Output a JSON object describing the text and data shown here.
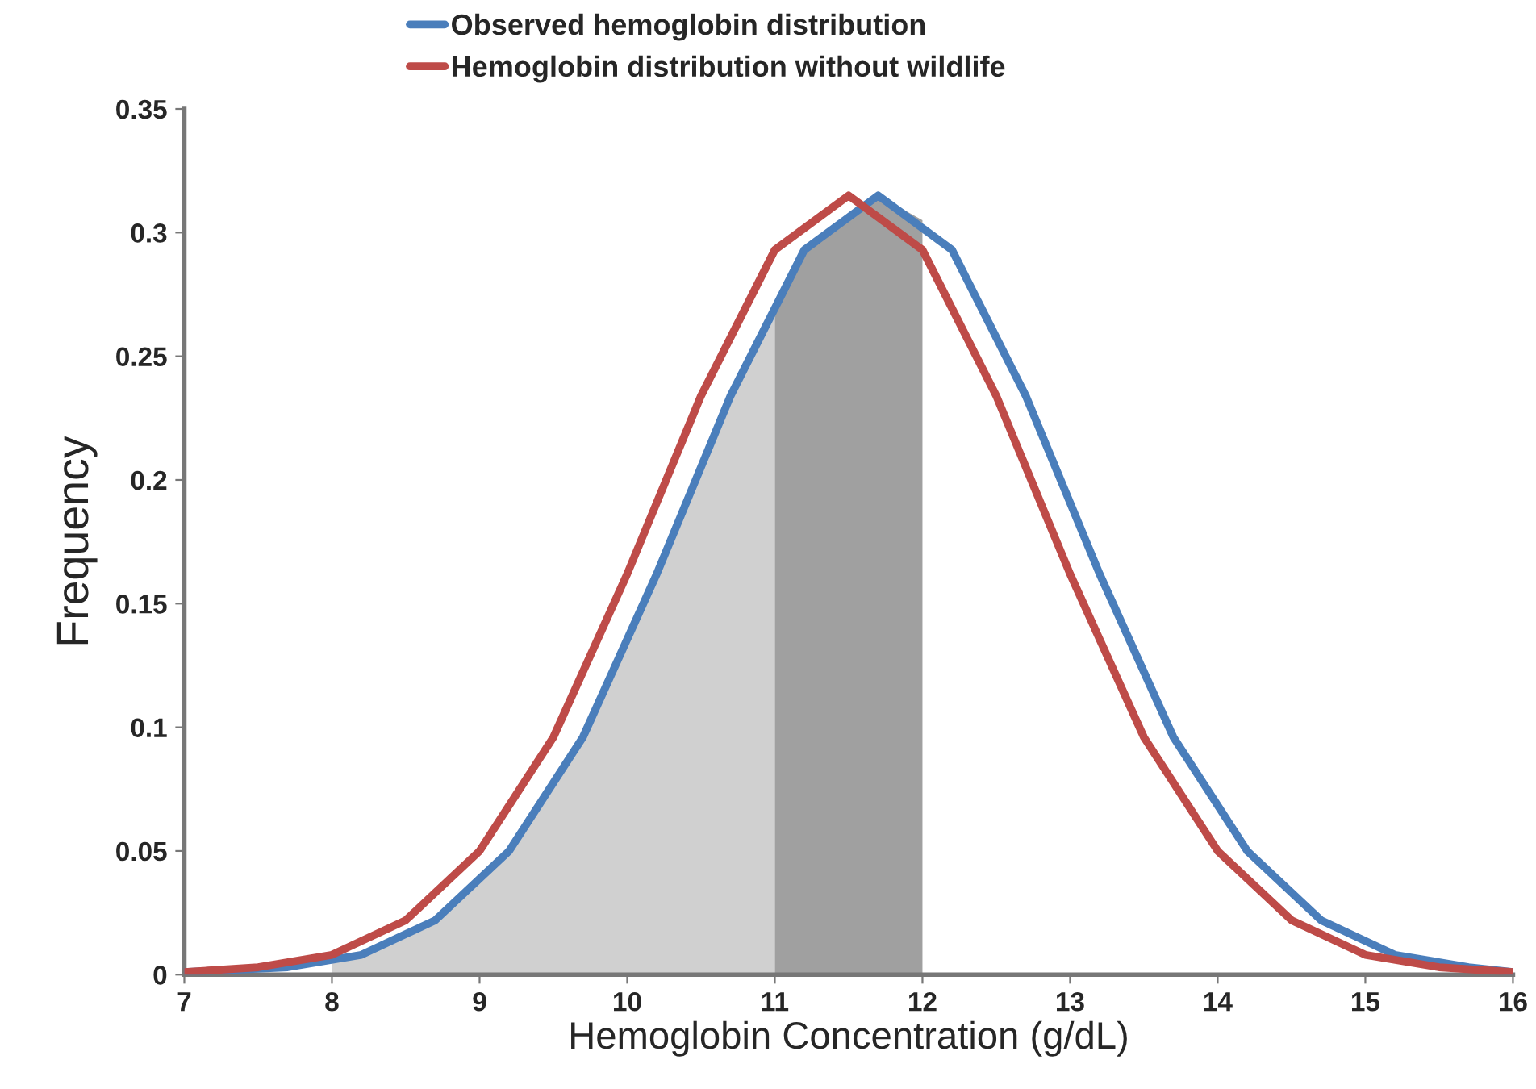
{
  "chart_data": {
    "type": "line",
    "xlabel": "Hemoglobin Concentration (g/dL)",
    "ylabel": "Frequency",
    "series": [
      {
        "type": "area",
        "color": "#d0d0d0",
        "x": [
          8,
          8.2,
          8.7,
          9.2,
          9.7,
          10.2,
          10.7,
          11
        ],
        "values": [
          0.005,
          0.008,
          0.022,
          0.05,
          0.096,
          0.162,
          0.234,
          0.27
        ]
      },
      {
        "type": "area",
        "color": "#a0a0a0",
        "x": [
          11,
          11.2,
          11.7,
          12
        ],
        "values": [
          0.27,
          0.293,
          0.315,
          0.305
        ]
      },
      {
        "name": "Observed hemoglobin distribution",
        "color": "#4a7ebb",
        "x": [
          7,
          7.7,
          8.2,
          8.7,
          9.2,
          9.7,
          10.2,
          10.7,
          11.2,
          11.7,
          12.2,
          12.7,
          13.2,
          13.7,
          14.2,
          14.7,
          15.2,
          15.7,
          16
        ],
        "values": [
          0.001,
          0.003,
          0.008,
          0.022,
          0.05,
          0.096,
          0.162,
          0.234,
          0.293,
          0.315,
          0.293,
          0.234,
          0.162,
          0.096,
          0.05,
          0.022,
          0.008,
          0.003,
          0.001
        ]
      },
      {
        "name": "Hemoglobin distribution without wildlife",
        "color": "#be4b48",
        "x": [
          7,
          7.5,
          8,
          8.5,
          9,
          9.5,
          10,
          10.5,
          11,
          11.5,
          12,
          12.5,
          13,
          13.5,
          14,
          14.5,
          15,
          15.5,
          16
        ],
        "values": [
          0.001,
          0.003,
          0.008,
          0.022,
          0.05,
          0.096,
          0.162,
          0.234,
          0.293,
          0.315,
          0.293,
          0.234,
          0.162,
          0.096,
          0.05,
          0.022,
          0.008,
          0.003,
          0.001
        ]
      }
    ],
    "xlim": [
      7,
      16
    ],
    "xticks": [
      7,
      8,
      9,
      10,
      11,
      12,
      13,
      14,
      15,
      16
    ],
    "ylim": [
      0,
      0.35
    ],
    "yticks": [
      0,
      0.05,
      0.1,
      0.15,
      0.2,
      0.25,
      0.3,
      0.35
    ],
    "grid": false,
    "legend": "top",
    "marker": "none",
    "line_style": "solid"
  }
}
